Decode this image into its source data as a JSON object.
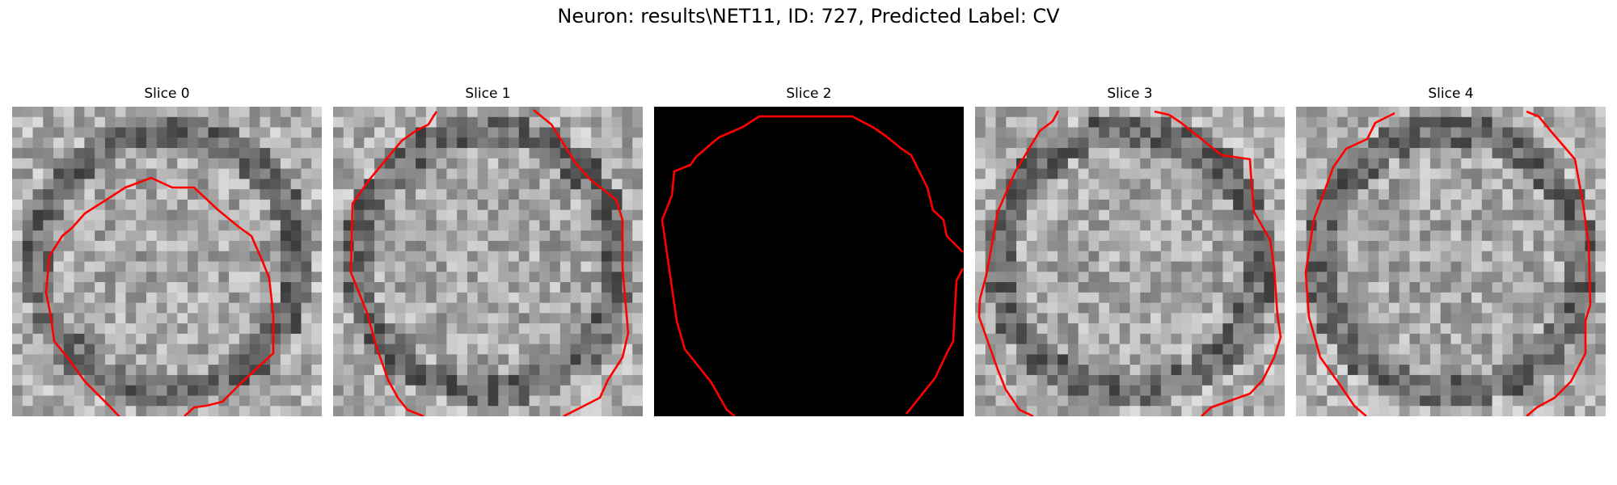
{
  "figure": {
    "title": "Neuron: results\\NET11, ID: 727, Predicted Label: CV"
  },
  "panels": [
    {
      "title": "Slice 0",
      "background": "noise",
      "seed": 11
    },
    {
      "title": "Slice 1",
      "background": "noise",
      "seed": 23
    },
    {
      "title": "Slice 2",
      "background": "black",
      "seed": 0
    },
    {
      "title": "Slice 3",
      "background": "noise",
      "seed": 37
    },
    {
      "title": "Slice 4",
      "background": "noise",
      "seed": 53
    }
  ],
  "colors": {
    "contour": "#ff0000",
    "black_slice": "#000000"
  }
}
